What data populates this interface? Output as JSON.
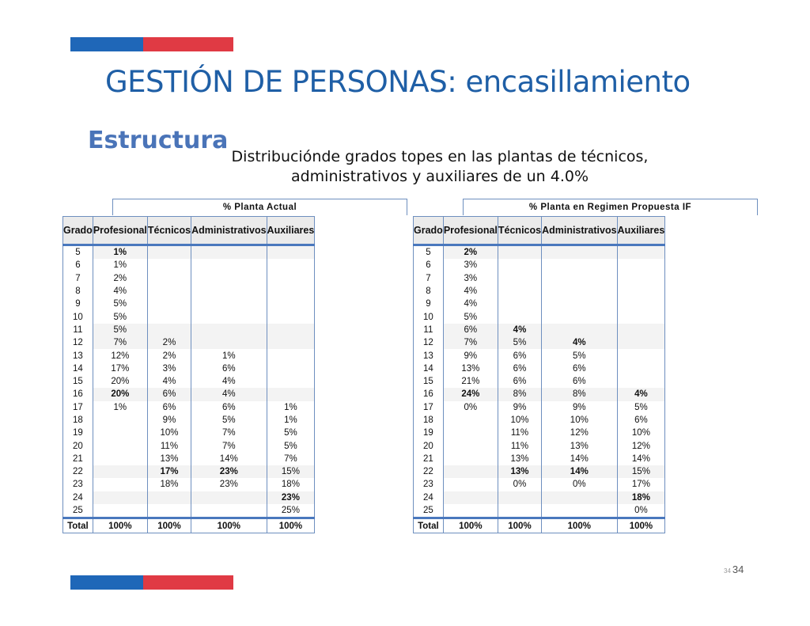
{
  "colors": {
    "accent_blue": "#1f67b8",
    "accent_red": "#e03a44",
    "title": "#1f5fa6",
    "subtitle": "#4a74b8"
  },
  "title": "GESTIÓN DE PERSONAS: encasillamiento",
  "subtitle": "Estructura",
  "caption_line1": "Distribuciónde grados topes en las plantas de técnicos,",
  "caption_line2": "administrativos y auxiliares de un 4.0%",
  "page_small": "34",
  "page_number": "34",
  "left_table": {
    "group_header": "% Planta Actual",
    "columns": [
      "Grado",
      "Profesional",
      "Técnicos",
      "Administrativos",
      "Auxiliares"
    ],
    "rows": [
      [
        "5",
        "1%",
        "",
        "",
        ""
      ],
      [
        "6",
        "1%",
        "",
        "",
        ""
      ],
      [
        "7",
        "2%",
        "",
        "",
        ""
      ],
      [
        "8",
        "4%",
        "",
        "",
        ""
      ],
      [
        "9",
        "5%",
        "",
        "",
        ""
      ],
      [
        "10",
        "5%",
        "",
        "",
        ""
      ],
      [
        "11",
        "5%",
        "",
        "",
        ""
      ],
      [
        "12",
        "7%",
        "2%",
        "",
        ""
      ],
      [
        "13",
        "12%",
        "2%",
        "1%",
        ""
      ],
      [
        "14",
        "17%",
        "3%",
        "6%",
        ""
      ],
      [
        "15",
        "20%",
        "4%",
        "4%",
        ""
      ],
      [
        "16",
        "20%",
        "6%",
        "4%",
        ""
      ],
      [
        "17",
        "1%",
        "6%",
        "6%",
        "1%"
      ],
      [
        "18",
        "",
        "9%",
        "5%",
        "1%"
      ],
      [
        "19",
        "",
        "10%",
        "7%",
        "5%"
      ],
      [
        "20",
        "",
        "11%",
        "7%",
        "5%"
      ],
      [
        "21",
        "",
        "13%",
        "14%",
        "7%"
      ],
      [
        "22",
        "",
        "17%",
        "23%",
        "15%"
      ],
      [
        "23",
        "",
        "18%",
        "23%",
        "18%"
      ],
      [
        "24",
        "",
        "",
        "",
        "23%"
      ],
      [
        "25",
        "",
        "",
        "",
        "25%"
      ]
    ],
    "total": [
      "Total",
      "100%",
      "100%",
      "100%",
      "100%"
    ]
  },
  "right_table": {
    "group_header": "% Planta en Regimen Propuesta  IF",
    "columns": [
      "Grado",
      "Profesional",
      "Técnicos",
      "Administrativos",
      "Auxiliares"
    ],
    "rows": [
      [
        "5",
        "2%",
        "",
        "",
        ""
      ],
      [
        "6",
        "3%",
        "",
        "",
        ""
      ],
      [
        "7",
        "3%",
        "",
        "",
        ""
      ],
      [
        "8",
        "4%",
        "",
        "",
        ""
      ],
      [
        "9",
        "4%",
        "",
        "",
        ""
      ],
      [
        "10",
        "5%",
        "",
        "",
        ""
      ],
      [
        "11",
        "6%",
        "4%",
        "",
        ""
      ],
      [
        "12",
        "7%",
        "5%",
        "4%",
        ""
      ],
      [
        "13",
        "9%",
        "6%",
        "5%",
        ""
      ],
      [
        "14",
        "13%",
        "6%",
        "6%",
        ""
      ],
      [
        "15",
        "21%",
        "6%",
        "6%",
        ""
      ],
      [
        "16",
        "24%",
        "8%",
        "8%",
        "4%"
      ],
      [
        "17",
        "0%",
        "9%",
        "9%",
        "5%"
      ],
      [
        "18",
        "",
        "10%",
        "10%",
        "6%"
      ],
      [
        "19",
        "",
        "11%",
        "12%",
        "10%"
      ],
      [
        "20",
        "",
        "11%",
        "13%",
        "12%"
      ],
      [
        "21",
        "",
        "13%",
        "14%",
        "14%"
      ],
      [
        "22",
        "",
        "13%",
        "14%",
        "15%"
      ],
      [
        "23",
        "",
        "0%",
        "0%",
        "17%"
      ],
      [
        "24",
        "",
        "",
        "",
        "18%"
      ],
      [
        "25",
        "",
        "",
        "",
        "0%"
      ]
    ],
    "total": [
      "Total",
      "100%",
      "100%",
      "100%",
      "100%"
    ]
  }
}
